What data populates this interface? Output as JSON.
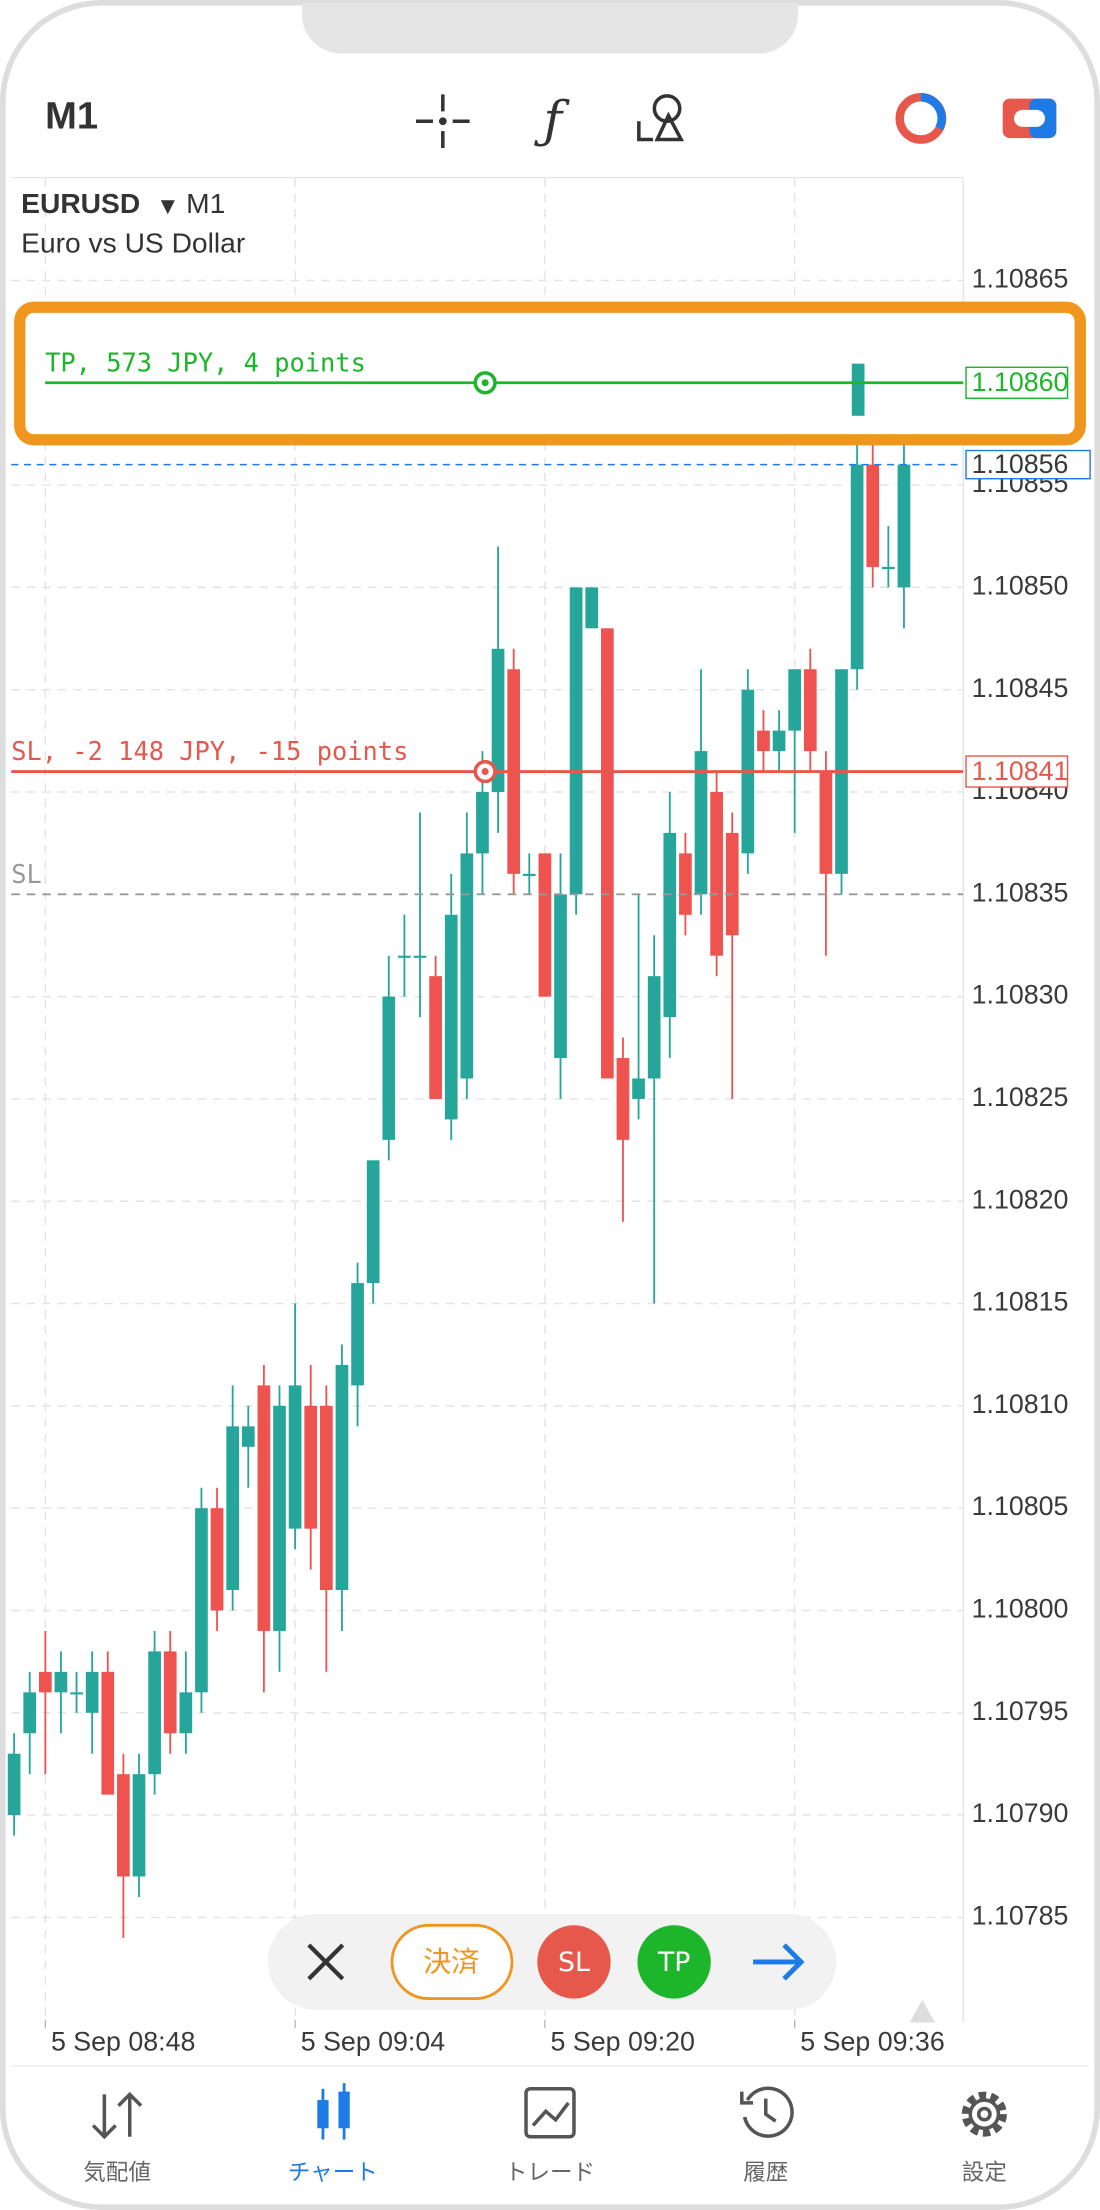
{
  "header": {
    "timeframe": "M1"
  },
  "chart_data": {
    "type": "candlestick",
    "symbol": "EURUSD",
    "timeframe": "M1",
    "description": "Euro vs US Dollar",
    "categories": [
      null,
      null,
      "5 Sep 08:48",
      null,
      null,
      null,
      null,
      null,
      null,
      null,
      null,
      null,
      null,
      null,
      null,
      null,
      null,
      null,
      "5 Sep 09:04",
      null,
      null,
      null,
      null,
      null,
      null,
      null,
      null,
      null,
      null,
      null,
      null,
      null,
      null,
      null,
      "5 Sep 09:20",
      null,
      null,
      null,
      null,
      null,
      null,
      null,
      null,
      null,
      null,
      null,
      null,
      null,
      null,
      null,
      "5 Sep 09:36",
      null,
      null,
      null,
      null,
      null,
      null,
      null
    ],
    "open": [
      1.1079,
      1.10794,
      1.10797,
      1.10796,
      1.10796,
      1.10795,
      1.10797,
      1.10792,
      1.10787,
      1.10792,
      1.10798,
      1.10794,
      1.10796,
      1.10805,
      1.10801,
      1.10808,
      1.10811,
      1.10799,
      1.10804,
      1.1081,
      1.1081,
      1.10801,
      1.10811,
      1.10816,
      1.10823,
      1.10832,
      1.10832,
      1.10831,
      1.10824,
      1.10826,
      1.10837,
      1.1084,
      1.10846,
      1.10836,
      1.10837,
      1.10827,
      1.10835,
      1.10848,
      1.10848,
      1.10827,
      1.10825,
      1.10826,
      1.10829,
      1.10837,
      1.10835,
      1.1084,
      1.10838,
      1.10837,
      1.10843,
      1.10842,
      1.10843,
      1.10846,
      1.10841,
      1.10836,
      1.10846,
      1.10856,
      1.10851,
      1.1085
    ],
    "high": [
      1.10794,
      1.10797,
      1.10799,
      1.10798,
      1.10797,
      1.10798,
      1.10798,
      1.10793,
      1.10793,
      1.10799,
      1.10799,
      1.10798,
      1.10806,
      1.10806,
      1.10811,
      1.1081,
      1.10812,
      1.10811,
      1.10815,
      1.10812,
      1.10811,
      1.10813,
      1.10817,
      1.10822,
      1.10832,
      1.10834,
      1.10839,
      1.10832,
      1.10836,
      1.10839,
      1.10842,
      1.10852,
      1.10847,
      1.10837,
      1.10837,
      1.10837,
      1.1085,
      1.1085,
      1.10848,
      1.10828,
      1.10835,
      1.10833,
      1.1084,
      1.10838,
      1.10846,
      1.10841,
      1.10839,
      1.10846,
      1.10844,
      1.10844,
      1.10846,
      1.10847,
      1.10842,
      1.10846,
      1.10857,
      1.10857,
      1.10853,
      1.10857
    ],
    "low": [
      1.10789,
      1.10792,
      1.10792,
      1.10794,
      1.10795,
      1.10793,
      1.10791,
      1.10784,
      1.10786,
      1.10791,
      1.10793,
      1.10793,
      1.10795,
      1.10799,
      1.108,
      1.10806,
      1.10796,
      1.10797,
      1.10803,
      1.10802,
      1.10797,
      1.10799,
      1.10809,
      1.10815,
      1.10822,
      1.1083,
      1.10829,
      1.10825,
      1.10823,
      1.10825,
      1.10835,
      1.10838,
      1.10835,
      1.10835,
      1.1083,
      1.10825,
      1.10834,
      1.10848,
      1.10826,
      1.10819,
      1.10824,
      1.10815,
      1.10827,
      1.10833,
      1.10834,
      1.10831,
      1.10825,
      1.10836,
      1.10841,
      1.10841,
      1.10838,
      1.10841,
      1.10832,
      1.10835,
      1.10845,
      1.1085,
      1.1085,
      1.10848
    ],
    "close": [
      1.10793,
      1.10796,
      1.10796,
      1.10797,
      1.10796,
      1.10797,
      1.10791,
      1.10787,
      1.10792,
      1.10798,
      1.10794,
      1.10796,
      1.10805,
      1.108,
      1.10809,
      1.10809,
      1.10799,
      1.1081,
      1.10811,
      1.10804,
      1.10801,
      1.10812,
      1.10816,
      1.10822,
      1.1083,
      1.10832,
      1.10832,
      1.10825,
      1.10834,
      1.10837,
      1.1084,
      1.10847,
      1.10836,
      1.10836,
      1.1083,
      1.10835,
      1.1085,
      1.1085,
      1.10826,
      1.10823,
      1.10826,
      1.10831,
      1.10838,
      1.10834,
      1.10842,
      1.10832,
      1.10833,
      1.10845,
      1.10842,
      1.10843,
      1.10846,
      1.10842,
      1.10836,
      1.10846,
      1.10856,
      1.10851,
      1.10851,
      1.10856
    ],
    "up_color": "#26a69a",
    "down_color": "#ef5350",
    "ylim": [
      1.1078,
      1.1087
    ],
    "yticks": [
      1.10865,
      1.10855,
      {
        "value": 1.1085,
        "label": "1.10850"
      },
      1.10845,
      {
        "value": 1.1084,
        "label": "1.10840"
      },
      1.10835,
      {
        "value": 1.1083,
        "label": "1.10830"
      },
      1.10825,
      {
        "value": 1.1082,
        "label": "1.10820"
      },
      1.10815,
      {
        "value": 1.1081,
        "label": "1.10810"
      },
      1.10805,
      {
        "value": 1.108,
        "label": "1.10800"
      },
      1.10795,
      {
        "value": 1.1079,
        "label": "1.10790"
      },
      1.10785
    ],
    "grid": true,
    "current_price": 1.10856,
    "current_color": "#1e7be6",
    "levels": [
      {
        "name": "TP, 573 JPY, 4 points",
        "price": {
          "value": 1.1086,
          "label": "1.10860"
        },
        "color": "#1db52a",
        "dashed": false,
        "price_tag": true
      },
      {
        "name": "SL, -2 148 JPY, -15 points",
        "price": 1.10841,
        "color": "#e5584b",
        "dashed": false,
        "price_tag": true
      },
      {
        "name": "SL",
        "price": 1.10835,
        "color": "#999999",
        "dashed": true,
        "price_tag": false
      }
    ]
  },
  "toolbar": {
    "close_position": "決済",
    "sl": "SL",
    "tp": "TP"
  },
  "tabbar": [
    "気配値",
    "チャート",
    "トレード",
    "履歴",
    "設定"
  ]
}
